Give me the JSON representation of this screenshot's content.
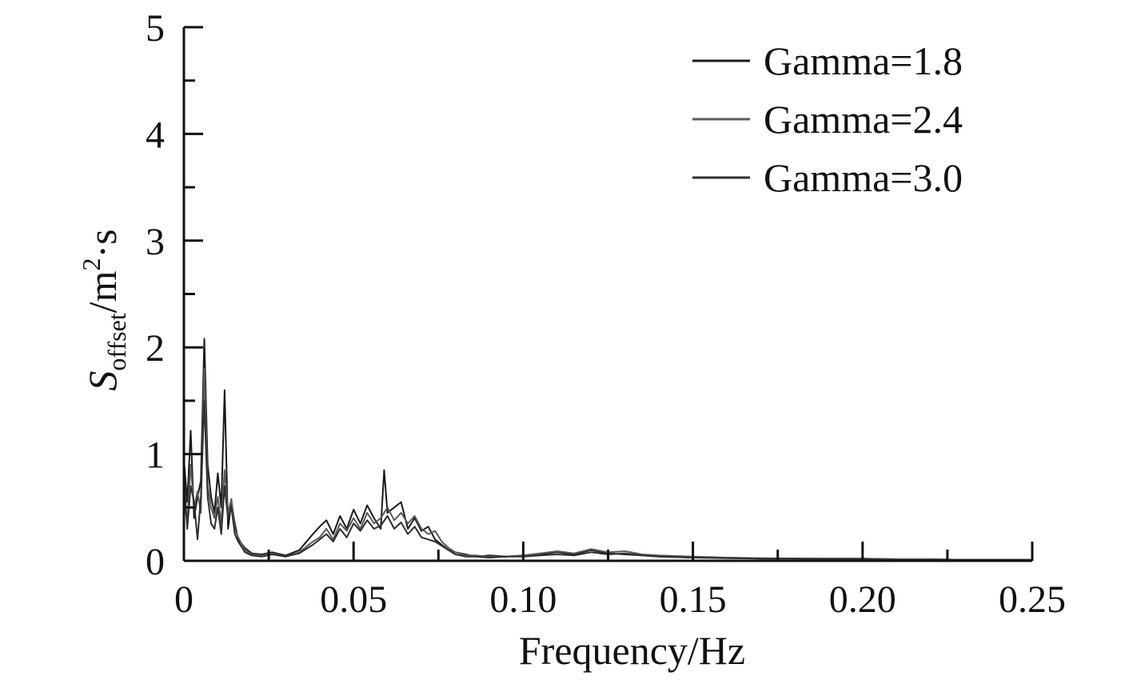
{
  "chart_data": {
    "type": "line",
    "title": "",
    "xlabel": "Frequency/Hz",
    "ylabel": {
      "base": "S",
      "subscript": "offset",
      "unit": "/m",
      "superscript": "2",
      "tail": "·s"
    },
    "xlim": [
      0,
      0.25
    ],
    "ylim": [
      0,
      5
    ],
    "x_ticks": [
      {
        "value": 0,
        "label": "0"
      },
      {
        "value": 0.05,
        "label": "0.05"
      },
      {
        "value": 0.1,
        "label": "0.10"
      },
      {
        "value": 0.15,
        "label": "0.15"
      },
      {
        "value": 0.2,
        "label": "0.20"
      },
      {
        "value": 0.25,
        "label": "0.25"
      }
    ],
    "x_minor_ticks": [
      0.025,
      0.075,
      0.125,
      0.175,
      0.225
    ],
    "y_ticks": [
      {
        "value": 0,
        "label": "0"
      },
      {
        "value": 1,
        "label": "1"
      },
      {
        "value": 2,
        "label": "2"
      },
      {
        "value": 3,
        "label": "3"
      },
      {
        "value": 4,
        "label": "4"
      },
      {
        "value": 5,
        "label": "5"
      }
    ],
    "y_minor_ticks": [
      0.5,
      1.5,
      2.5,
      3.5,
      4.5
    ],
    "grid": false,
    "legend_position": "top-right",
    "series": [
      {
        "name": "Gamma=1.8",
        "color": "#1a1a1a",
        "x": [
          0,
          0.001,
          0.002,
          0.003,
          0.004,
          0.005,
          0.006,
          0.007,
          0.008,
          0.009,
          0.01,
          0.011,
          0.012,
          0.013,
          0.014,
          0.015,
          0.016,
          0.018,
          0.02,
          0.023,
          0.026,
          0.03,
          0.034,
          0.038,
          0.04,
          0.042,
          0.044,
          0.046,
          0.048,
          0.05,
          0.052,
          0.054,
          0.056,
          0.058,
          0.059,
          0.06,
          0.062,
          0.064,
          0.066,
          0.068,
          0.07,
          0.072,
          0.074,
          0.076,
          0.078,
          0.08,
          0.083,
          0.086,
          0.09,
          0.095,
          0.1,
          0.105,
          0.11,
          0.115,
          0.12,
          0.125,
          0.13,
          0.135,
          0.14,
          0.15,
          0.16,
          0.17,
          0.18,
          0.19,
          0.2,
          0.21,
          0.22,
          0.23,
          0.24,
          0.25
        ],
        "y": [
          0.95,
          0.55,
          1.22,
          0.4,
          0.6,
          0.75,
          2.08,
          0.9,
          0.6,
          0.45,
          0.82,
          0.5,
          1.6,
          0.3,
          0.55,
          0.35,
          0.2,
          0.12,
          0.07,
          0.06,
          0.08,
          0.05,
          0.1,
          0.25,
          0.32,
          0.38,
          0.25,
          0.42,
          0.3,
          0.48,
          0.35,
          0.52,
          0.4,
          0.3,
          0.85,
          0.45,
          0.5,
          0.55,
          0.3,
          0.4,
          0.28,
          0.32,
          0.2,
          0.15,
          0.1,
          0.08,
          0.06,
          0.04,
          0.05,
          0.04,
          0.05,
          0.06,
          0.08,
          0.06,
          0.1,
          0.07,
          0.06,
          0.05,
          0.04,
          0.03,
          0.03,
          0.02,
          0.02,
          0.02,
          0.02,
          0.015,
          0.015,
          0.01,
          0.01,
          0.01
        ]
      },
      {
        "name": "Gamma=2.4",
        "color": "#5a5a5a",
        "x": [
          0,
          0.001,
          0.002,
          0.003,
          0.004,
          0.005,
          0.006,
          0.007,
          0.008,
          0.009,
          0.01,
          0.011,
          0.012,
          0.013,
          0.014,
          0.015,
          0.016,
          0.018,
          0.02,
          0.023,
          0.026,
          0.03,
          0.034,
          0.038,
          0.04,
          0.042,
          0.044,
          0.046,
          0.048,
          0.05,
          0.052,
          0.054,
          0.056,
          0.058,
          0.06,
          0.062,
          0.064,
          0.066,
          0.068,
          0.07,
          0.072,
          0.074,
          0.076,
          0.078,
          0.08,
          0.083,
          0.086,
          0.09,
          0.095,
          0.1,
          0.105,
          0.11,
          0.115,
          0.12,
          0.125,
          0.13,
          0.135,
          0.14,
          0.15,
          0.16,
          0.17,
          0.18,
          0.19,
          0.2,
          0.21,
          0.22,
          0.23,
          0.24,
          0.25
        ],
        "y": [
          0.6,
          0.35,
          0.9,
          0.5,
          0.65,
          0.45,
          1.8,
          0.7,
          0.5,
          0.4,
          0.6,
          0.35,
          0.85,
          0.45,
          0.58,
          0.3,
          0.22,
          0.1,
          0.06,
          0.05,
          0.07,
          0.04,
          0.08,
          0.18,
          0.22,
          0.3,
          0.2,
          0.35,
          0.28,
          0.4,
          0.3,
          0.45,
          0.35,
          0.4,
          0.5,
          0.38,
          0.45,
          0.35,
          0.42,
          0.3,
          0.25,
          0.28,
          0.18,
          0.12,
          0.08,
          0.05,
          0.05,
          0.04,
          0.04,
          0.05,
          0.07,
          0.09,
          0.07,
          0.11,
          0.08,
          0.09,
          0.06,
          0.05,
          0.04,
          0.03,
          0.025,
          0.02,
          0.02,
          0.02,
          0.015,
          0.015,
          0.01,
          0.01,
          0.01
        ]
      },
      {
        "name": "Gamma=3.0",
        "color": "#2e2e2e",
        "x": [
          0,
          0.001,
          0.002,
          0.003,
          0.004,
          0.005,
          0.006,
          0.007,
          0.008,
          0.009,
          0.01,
          0.011,
          0.012,
          0.013,
          0.014,
          0.015,
          0.016,
          0.018,
          0.02,
          0.023,
          0.026,
          0.03,
          0.034,
          0.038,
          0.04,
          0.042,
          0.044,
          0.046,
          0.048,
          0.05,
          0.052,
          0.054,
          0.056,
          0.058,
          0.06,
          0.062,
          0.064,
          0.066,
          0.068,
          0.07,
          0.072,
          0.074,
          0.076,
          0.078,
          0.08,
          0.083,
          0.086,
          0.09,
          0.095,
          0.1,
          0.105,
          0.11,
          0.115,
          0.12,
          0.125,
          0.13,
          0.135,
          0.14,
          0.15,
          0.16,
          0.17,
          0.18,
          0.19,
          0.2,
          0.21,
          0.22,
          0.23,
          0.24,
          0.25
        ],
        "y": [
          0.8,
          0.3,
          0.7,
          0.55,
          0.2,
          0.6,
          1.5,
          0.6,
          0.35,
          0.3,
          0.5,
          0.25,
          0.7,
          0.4,
          0.5,
          0.25,
          0.18,
          0.08,
          0.05,
          0.04,
          0.06,
          0.04,
          0.07,
          0.15,
          0.2,
          0.25,
          0.18,
          0.3,
          0.22,
          0.35,
          0.28,
          0.38,
          0.3,
          0.33,
          0.42,
          0.3,
          0.36,
          0.25,
          0.32,
          0.22,
          0.2,
          0.18,
          0.14,
          0.1,
          0.06,
          0.04,
          0.04,
          0.03,
          0.04,
          0.04,
          0.05,
          0.06,
          0.05,
          0.08,
          0.06,
          0.07,
          0.05,
          0.04,
          0.03,
          0.025,
          0.02,
          0.02,
          0.015,
          0.015,
          0.01,
          0.01,
          0.01,
          0.01,
          0.01
        ]
      }
    ]
  }
}
